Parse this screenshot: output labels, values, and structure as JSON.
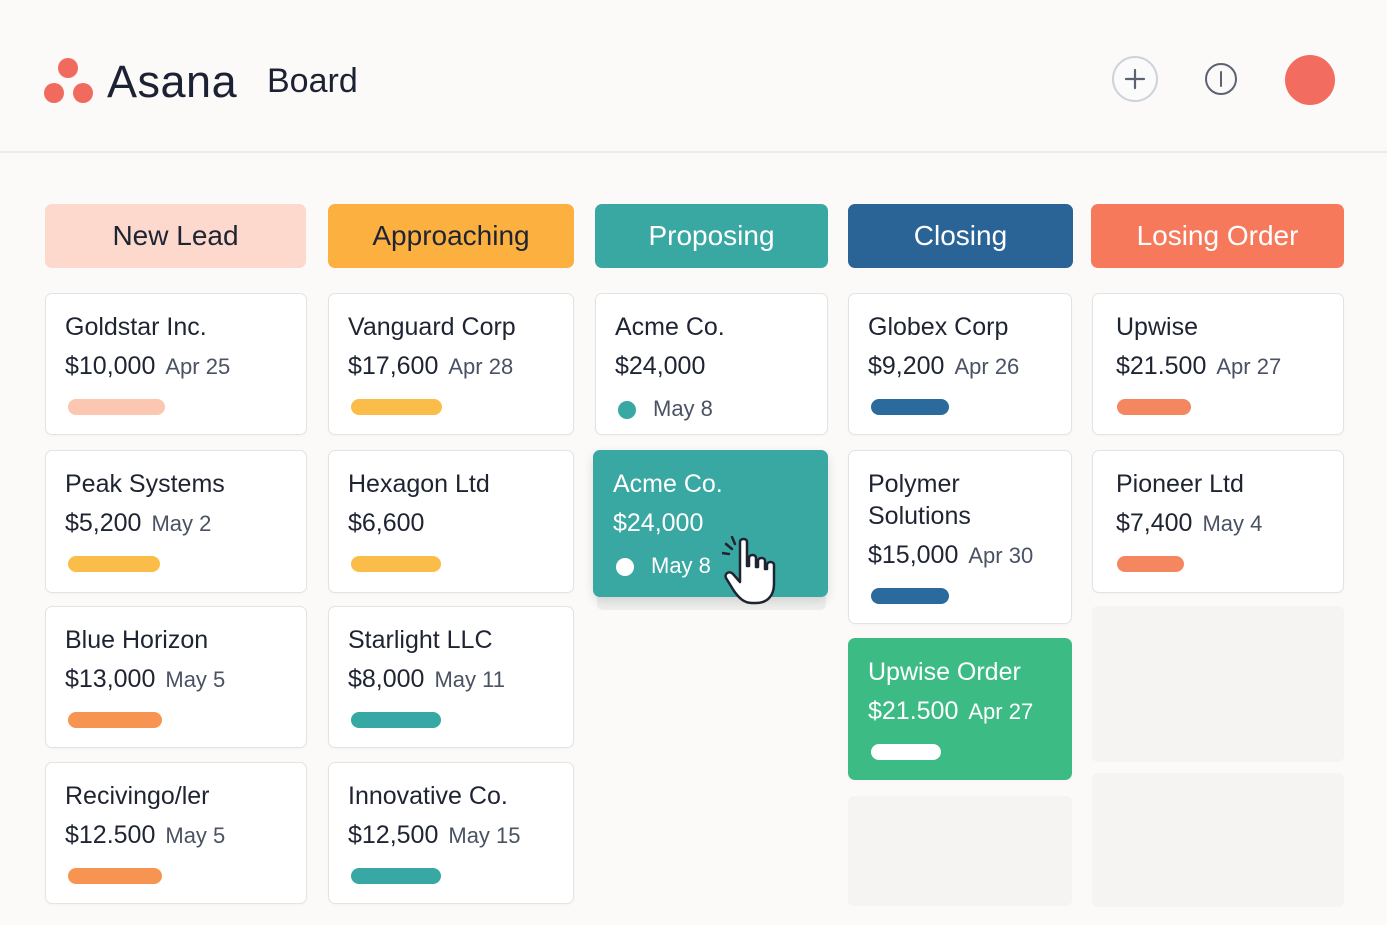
{
  "app": {
    "brand": "Asana",
    "page_title": "Board"
  },
  "header": {
    "add_icon": "plus-icon",
    "info_icon": "info-icon",
    "avatar_color": "#f26c5f"
  },
  "colors": {
    "new_lead": "#fcd9cc",
    "approaching": "#fbb040",
    "proposing": "#3aa8a2",
    "closing": "#2a6496",
    "losing": "#f7795c",
    "bar_peach": "#fbc7b0",
    "bar_yellow": "#fbbd4a",
    "bar_orange": "#f79452",
    "bar_teal": "#37a8a3",
    "bar_blue": "#2a6a9c",
    "bar_coral": "#f58760",
    "won_green": "#3dbb85"
  },
  "columns": [
    {
      "label": "New Lead",
      "cards": [
        {
          "name": "Goldstar Inc.",
          "amount": "$10,000",
          "date": "Apr 25"
        },
        {
          "name": "Peak Systems",
          "amount": "$5,200",
          "date": "May 2"
        },
        {
          "name": "Blue Horizon",
          "amount": "$13,000",
          "date": "May 5"
        },
        {
          "name": "Recivingo/ler",
          "amount": "$12.500",
          "date": "May 5"
        }
      ]
    },
    {
      "label": "Approaching",
      "cards": [
        {
          "name": "Vanguard Corp",
          "amount": "$17,600",
          "date": "Apr 28"
        },
        {
          "name": "Hexagon Ltd",
          "amount": "$6,600",
          "date": ""
        },
        {
          "name": "Starlight LLC",
          "amount": "$8,000",
          "date": "May 11"
        },
        {
          "name": "Innovative Co.",
          "amount": "$12,500",
          "date": "May 15"
        }
      ]
    },
    {
      "label": "Proposing",
      "cards": [
        {
          "name": "Acme Co.",
          "amount": "$24,000",
          "date": "May 8"
        },
        {
          "name": "Acme Co.",
          "amount": "$24,000",
          "date": "May 8",
          "state": "dragging"
        }
      ]
    },
    {
      "label": "Closing",
      "cards": [
        {
          "name": "Globex Corp",
          "amount": "$9,200",
          "date": "Apr 26"
        },
        {
          "name": "Polymer Solutions",
          "amount": "$15,000",
          "date": "Apr 30"
        },
        {
          "name": "Upwise Order",
          "amount": "$21.500",
          "date": "Apr 27",
          "state": "won"
        }
      ]
    },
    {
      "label": "Losing Order",
      "cards": [
        {
          "name": "Upwise",
          "amount": "$21.500",
          "date": "Apr 27"
        },
        {
          "name": "Pioneer Ltd",
          "amount": "$7,400",
          "date": "May 4"
        }
      ]
    }
  ],
  "cursor_icon": "hand-pointer-icon"
}
